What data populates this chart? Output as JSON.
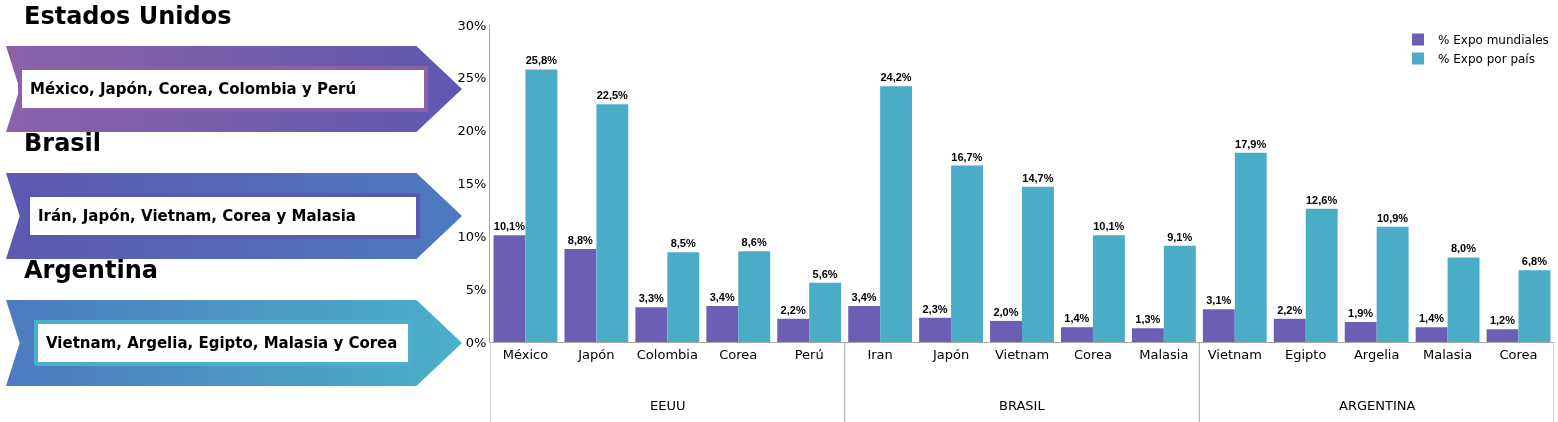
{
  "chart_data": {
    "type": "bar",
    "categories": [
      "México",
      "Japón",
      "Colombia",
      "Corea",
      "Perú",
      "Iran",
      "Japón",
      "Vietnam",
      "Corea",
      "Malasia",
      "Vietnam",
      "Egipto",
      "Argelia",
      "Malasia",
      "Corea"
    ],
    "series": [
      {
        "name": "% Expo mundiales",
        "color": "#6a5fb5",
        "values": [
          10.1,
          8.8,
          3.3,
          3.4,
          2.2,
          3.4,
          2.3,
          2.0,
          1.4,
          1.3,
          3.1,
          2.2,
          1.9,
          1.4,
          1.2
        ],
        "value_labels": [
          "10,1%",
          "8,8%",
          "3,3%",
          "3,4%",
          "2,2%",
          "3,4%",
          "2,3%",
          "2,0%",
          "1,4%",
          "1,3%",
          "3,1%",
          "2,2%",
          "1,9%",
          "1,4%",
          "1,2%"
        ]
      },
      {
        "name": "% Expo por país",
        "color": "#4bacc6",
        "values": [
          25.8,
          22.5,
          8.5,
          8.6,
          5.6,
          24.2,
          16.7,
          14.7,
          10.1,
          9.1,
          17.9,
          12.6,
          10.9,
          8.0,
          6.8
        ],
        "value_labels": [
          "25,8%",
          "22,5%",
          "8,5%",
          "8,6%",
          "5,6%",
          "24,2%",
          "16,7%",
          "14,7%",
          "10,1%",
          "9,1%",
          "17,9%",
          "12,6%",
          "10,9%",
          "8,0%",
          "6,8%"
        ]
      }
    ],
    "ylim": [
      0,
      30
    ],
    "yticks": [
      {
        "value": 0,
        "label": "0%"
      },
      {
        "value": 5,
        "label": "5%"
      },
      {
        "value": 10,
        "label": "10%"
      },
      {
        "value": 15,
        "label": "15%"
      },
      {
        "value": 20,
        "label": "20%"
      },
      {
        "value": 25,
        "label": "25%"
      },
      {
        "value": 30,
        "label": "30%"
      }
    ],
    "legend": "top right",
    "annotations": [
      "Estados Unidos",
      "México, Japón, Corea, Colombia y Perú",
      "Brasil",
      "Irán, Japón, Vietnam, Corea y Malasia",
      "Argentina",
      "Vietnam, Argelia, Egipto, Malasia y Corea",
      "EEUU",
      "BRASIL",
      "ARGENTINA"
    ]
  }
}
